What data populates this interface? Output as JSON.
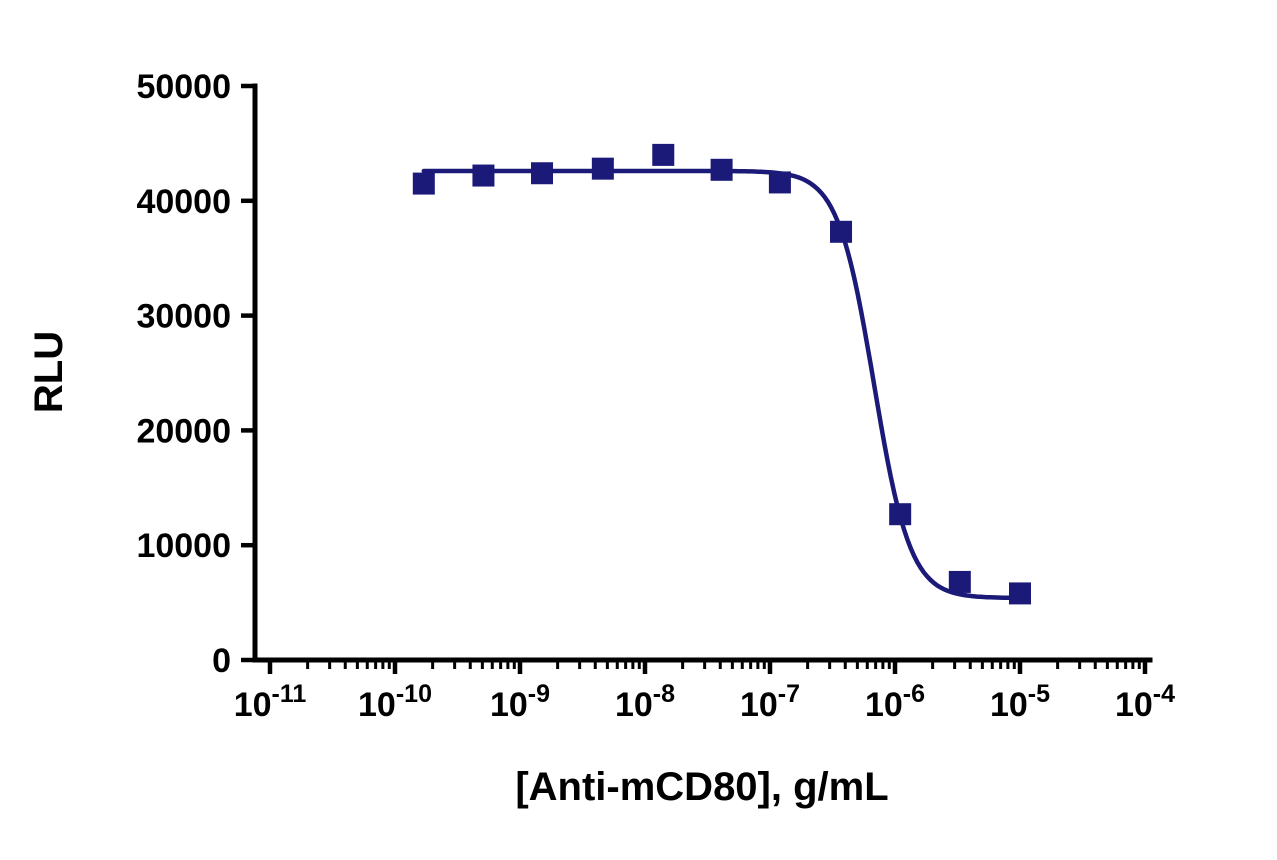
{
  "chart_data": {
    "type": "scatter",
    "title": "",
    "xlabel": "[Anti-mCD80], g/mL",
    "ylabel": "RLU",
    "x_scale": "log",
    "xlim_exponents": [
      -11,
      -4
    ],
    "x_tick_exponents": [
      -11,
      -10,
      -9,
      -8,
      -7,
      -6,
      -5,
      -4
    ],
    "ylim": [
      0,
      50000
    ],
    "y_ticks": [
      0,
      10000,
      20000,
      30000,
      40000,
      50000
    ],
    "grid": "off",
    "legend": "none",
    "marker": "square",
    "marker_color": "#1b1a78",
    "line_color": "#1b1a78",
    "axis_color": "#000000",
    "background_color": "#ffffff",
    "points": [
      {
        "x": 1.7e-10,
        "y": 41500
      },
      {
        "x": 5.1e-10,
        "y": 42200
      },
      {
        "x": 1.5e-09,
        "y": 42400
      },
      {
        "x": 4.6e-09,
        "y": 42800
      },
      {
        "x": 1.4e-08,
        "y": 44000
      },
      {
        "x": 4.1e-08,
        "y": 42700
      },
      {
        "x": 1.2e-07,
        "y": 41600
      },
      {
        "x": 3.7e-07,
        "y": 37300
      },
      {
        "x": 1.1e-06,
        "y": 12700
      },
      {
        "x": 3.3e-06,
        "y": 6800
      },
      {
        "x": 1e-05,
        "y": 5800
      }
    ],
    "fit_curve": {
      "model": "4PL",
      "top": 42600,
      "bottom": 5400,
      "ic50": 6.8e-07,
      "hill_slope": 3,
      "x_start": 1.7e-10,
      "x_end": 1e-05
    }
  }
}
